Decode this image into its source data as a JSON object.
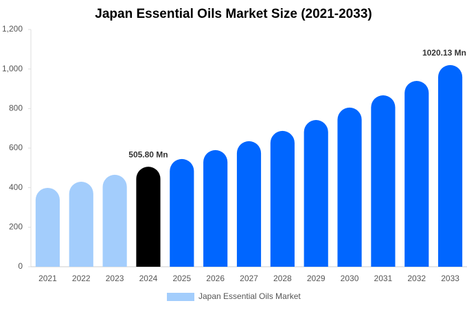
{
  "chart_data": {
    "type": "bar",
    "title": "Japan Essential Oils Market Size (2021-2033)",
    "categories": [
      "2021",
      "2022",
      "2023",
      "2024",
      "2025",
      "2026",
      "2027",
      "2028",
      "2029",
      "2030",
      "2031",
      "2032",
      "2033"
    ],
    "series": [
      {
        "name": "Japan Essential Oils Market",
        "color": "#a3cdfc",
        "colors": [
          "#a3cdfc",
          "#a3cdfc",
          "#a3cdfc",
          "#000000",
          "#0066ff",
          "#0066ff",
          "#0066ff",
          "#0066ff",
          "#0066ff",
          "#0066ff",
          "#0066ff",
          "#0066ff",
          "#0066ff"
        ],
        "values": [
          399,
          430,
          465,
          505.8,
          545,
          590,
          635,
          687,
          742,
          805,
          867,
          940,
          1020.13
        ],
        "value_labels": [
          null,
          null,
          null,
          "505.80 Mn",
          null,
          null,
          null,
          null,
          null,
          null,
          null,
          null,
          "1020.13 Mn"
        ]
      }
    ],
    "ylim": [
      0,
      1200
    ],
    "yticks": [
      0,
      200,
      400,
      600,
      800,
      {
        "value": 1000,
        "label": "1,000"
      },
      {
        "value": 1200,
        "label": "1,200"
      }
    ],
    "grid": false,
    "legend": "bottom"
  }
}
